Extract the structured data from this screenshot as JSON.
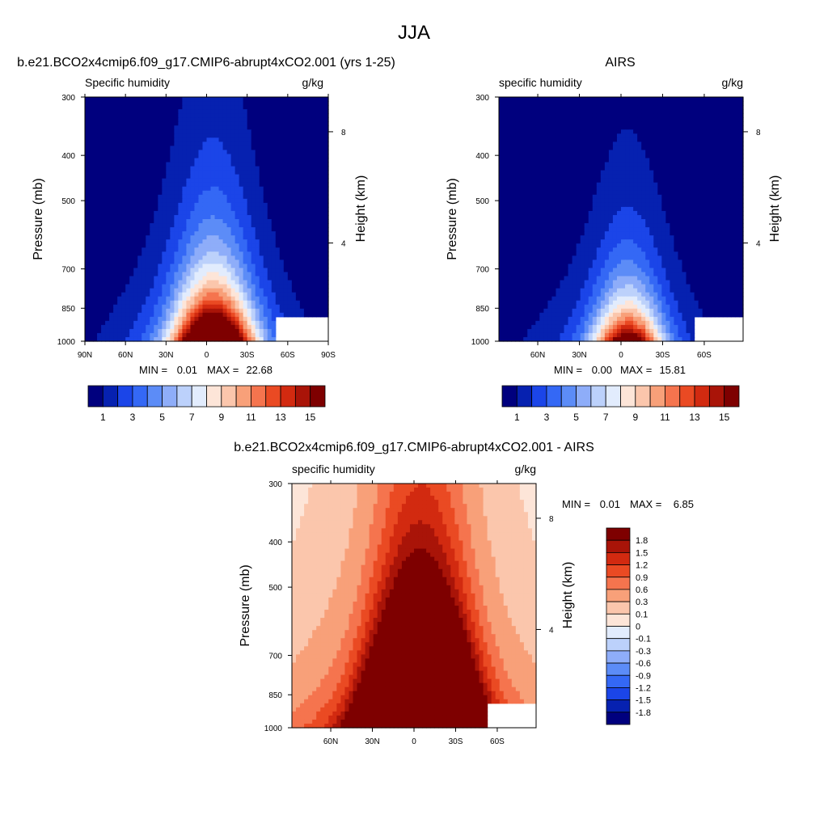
{
  "page_title": "JJA",
  "chart_data": [
    {
      "id": "model",
      "type": "heatmap",
      "title": "b.e21.BCO2x4cmip6.f09_g17.CMIP6-abrupt4xCO2.001 (yrs 1-25)",
      "variable_label": "Specific humidity",
      "units_label": "g/kg",
      "ylabel": "Pressure (mb)",
      "y2label": "Height (km)",
      "y_ticks": [
        "300",
        "400",
        "500",
        "700",
        "850",
        "1000"
      ],
      "y2_ticks": [
        "8",
        "4"
      ],
      "x_ticks": [
        "90N",
        "60N",
        "30N",
        "0",
        "30S",
        "60S",
        "90S"
      ],
      "min_label": "MIN =",
      "min_value": "0.01",
      "max_label": "MAX =",
      "max_value": "22.68",
      "colorbar_labels": [
        "1",
        "3",
        "5",
        "7",
        "9",
        "11",
        "13",
        "15"
      ],
      "peak_value": 22.68,
      "peak_latitude": -5,
      "peak_spread_deg": 28,
      "peak_scale_height_mb": 230
    },
    {
      "id": "airs",
      "type": "heatmap",
      "title": "AIRS",
      "variable_label": "specific humidity",
      "units_label": "g/kg",
      "ylabel": "Pressure (mb)",
      "y2label": "Height (km)",
      "y_ticks": [
        "300",
        "400",
        "500",
        "700",
        "850",
        "1000"
      ],
      "y2_ticks": [
        "8",
        "4"
      ],
      "x_ticks": [
        "60N",
        "30N",
        "0",
        "30S",
        "60S"
      ],
      "min_label": "MIN =",
      "min_value": "0.00",
      "max_label": "MAX =",
      "max_value": "15.81",
      "colorbar_labels": [
        "1",
        "3",
        "5",
        "7",
        "9",
        "11",
        "13",
        "15"
      ],
      "peak_value": 15.81,
      "peak_latitude": -5,
      "peak_spread_deg": 24,
      "peak_scale_height_mb": 200
    },
    {
      "id": "diff",
      "type": "heatmap",
      "title": "b.e21.BCO2x4cmip6.f09_g17.CMIP6-abrupt4xCO2.001 - AIRS",
      "variable_label": "specific humidity",
      "units_label": "g/kg",
      "ylabel": "Pressure (mb)",
      "y2label": "Height (km)",
      "y_ticks": [
        "300",
        "400",
        "500",
        "700",
        "850",
        "1000"
      ],
      "y2_ticks": [
        "8",
        "4"
      ],
      "x_ticks": [
        "60N",
        "30N",
        "0",
        "30S",
        "60S"
      ],
      "min_label": "MIN =",
      "min_value": "0.01",
      "max_label": "MAX =",
      "max_value": "6.85",
      "colorbar_labels": [
        "1.8",
        "1.5",
        "1.2",
        "0.9",
        "0.6",
        "0.3",
        "0.1",
        "0",
        "-0.1",
        "-0.3",
        "-0.6",
        "-0.9",
        "-1.2",
        "-1.5",
        "-1.8"
      ]
    }
  ],
  "colors": {
    "absolute_levels": [
      "#00007e",
      "#0621b0",
      "#1b45e8",
      "#3468f5",
      "#5c8cf7",
      "#8eadf9",
      "#bcd1fb",
      "#e2ecfd",
      "#fde5d8",
      "#fbc6ac",
      "#f8a079",
      "#f5744e",
      "#ea4a23",
      "#d22a10",
      "#a91408",
      "#7e0000"
    ],
    "difference_levels": [
      "#7e0000",
      "#a91408",
      "#d22a10",
      "#ea4a23",
      "#f5744e",
      "#f8a079",
      "#fbc6ac",
      "#fde5d8",
      "#e2ecfd",
      "#bcd1fb",
      "#8eadf9",
      "#5c8cf7",
      "#3468f5",
      "#1b45e8",
      "#0621b0",
      "#00007e"
    ]
  }
}
